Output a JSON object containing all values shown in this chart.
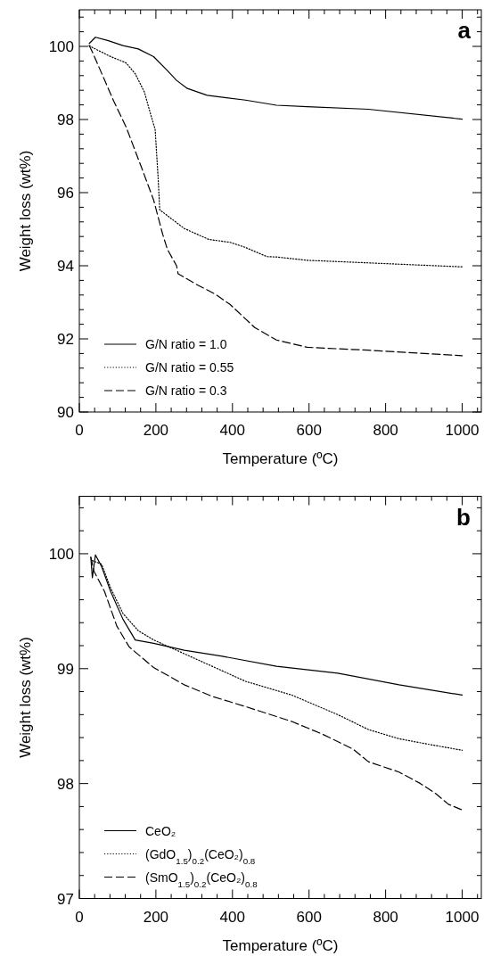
{
  "chart_data": [
    {
      "type": "line",
      "xlabel": "Temperature (ºC)",
      "ylabel": "Weight loss (wt%)",
      "annotations": [
        "a"
      ],
      "legend": "bottom left",
      "xlim": [
        0,
        1050
      ],
      "ylim": [
        90,
        101
      ],
      "xticks": [
        0,
        {
          "value": 40,
          "label": null
        },
        {
          "value": 80,
          "label": null
        },
        {
          "value": 120,
          "label": null
        },
        {
          "value": 160,
          "label": null
        },
        200,
        {
          "value": 240,
          "label": null
        },
        {
          "value": 280,
          "label": null
        },
        {
          "value": 320,
          "label": null
        },
        {
          "value": 360,
          "label": null
        },
        400,
        {
          "value": 440,
          "label": null
        },
        {
          "value": 480,
          "label": null
        },
        {
          "value": 520,
          "label": null
        },
        {
          "value": 560,
          "label": null
        },
        600,
        {
          "value": 640,
          "label": null
        },
        {
          "value": 680,
          "label": null
        },
        {
          "value": 720,
          "label": null
        },
        {
          "value": 760,
          "label": null
        },
        800,
        {
          "value": 840,
          "label": null
        },
        {
          "value": 880,
          "label": null
        },
        {
          "value": 920,
          "label": null
        },
        {
          "value": 960,
          "label": null
        },
        1000,
        {
          "value": 1040,
          "label": null
        }
      ],
      "yticks": [
        90,
        {
          "value": 90.4,
          "label": null
        },
        {
          "value": 90.8,
          "label": null
        },
        {
          "value": 91.2,
          "label": null
        },
        {
          "value": 91.6,
          "label": null
        },
        92,
        {
          "value": 92.4,
          "label": null
        },
        {
          "value": 92.8,
          "label": null
        },
        {
          "value": 93.2,
          "label": null
        },
        {
          "value": 93.6,
          "label": null
        },
        94,
        {
          "value": 94.4,
          "label": null
        },
        {
          "value": 94.8,
          "label": null
        },
        {
          "value": 95.2,
          "label": null
        },
        {
          "value": 95.6,
          "label": null
        },
        96,
        {
          "value": 96.4,
          "label": null
        },
        {
          "value": 96.8,
          "label": null
        },
        {
          "value": 97.2,
          "label": null
        },
        {
          "value": 97.6,
          "label": null
        },
        98,
        {
          "value": 98.4,
          "label": null
        },
        {
          "value": 98.8,
          "label": null
        },
        {
          "value": 99.2,
          "label": null
        },
        {
          "value": 99.6,
          "label": null
        },
        100,
        {
          "value": 100.4,
          "label": null
        },
        {
          "value": 100.8,
          "label": null
        }
      ],
      "series": [
        {
          "name": "G/N ratio = 1.0",
          "color": "#000000",
          "line_style": "solid",
          "x": [
            26,
            42,
            74,
            114,
            154,
            194,
            226,
            254,
            282,
            334,
            434,
            515,
            595,
            755,
            1000
          ],
          "values": [
            100.08,
            100.25,
            100.16,
            100.02,
            99.93,
            99.72,
            99.38,
            99.07,
            98.85,
            98.66,
            98.53,
            98.39,
            98.35,
            98.28,
            98.01
          ]
        },
        {
          "name": "G/N ratio = 0.55",
          "color": "#000000",
          "line_style": "dotted",
          "x": [
            26,
            34,
            82,
            122,
            146,
            170,
            186,
            198,
            206,
            210,
            274,
            338,
            394,
            434,
            490,
            515,
            595,
            1000
          ],
          "values": [
            100.02,
            99.97,
            99.72,
            99.55,
            99.25,
            98.75,
            98.15,
            97.73,
            96.37,
            95.53,
            95.02,
            94.72,
            94.64,
            94.5,
            94.25,
            94.24,
            94.15,
            93.97
          ]
        },
        {
          "name": "G/N ratio = 0.3",
          "color": "#000000",
          "line_style": "dashed",
          "x": [
            26,
            34,
            90,
            122,
            162,
            194,
            218,
            230,
            254,
            258,
            306,
            354,
            394,
            458,
            515,
            595,
            755,
            1000
          ],
          "values": [
            100.02,
            99.85,
            98.5,
            97.8,
            96.7,
            95.8,
            94.85,
            94.45,
            94.0,
            93.78,
            93.49,
            93.23,
            92.94,
            92.31,
            91.97,
            91.77,
            91.69,
            91.54
          ]
        }
      ]
    },
    {
      "type": "line",
      "xlabel": "Temperature (ºC)",
      "ylabel": "Weight loss (wt%)",
      "annotations": [
        "b"
      ],
      "legend": "bottom left",
      "xlim": [
        0,
        1050
      ],
      "ylim": [
        97,
        100.5
      ],
      "xticks": [
        0,
        {
          "value": 40,
          "label": null
        },
        {
          "value": 80,
          "label": null
        },
        {
          "value": 120,
          "label": null
        },
        {
          "value": 160,
          "label": null
        },
        200,
        {
          "value": 240,
          "label": null
        },
        {
          "value": 280,
          "label": null
        },
        {
          "value": 320,
          "label": null
        },
        {
          "value": 360,
          "label": null
        },
        400,
        {
          "value": 440,
          "label": null
        },
        {
          "value": 480,
          "label": null
        },
        {
          "value": 520,
          "label": null
        },
        {
          "value": 560,
          "label": null
        },
        600,
        {
          "value": 640,
          "label": null
        },
        {
          "value": 680,
          "label": null
        },
        {
          "value": 720,
          "label": null
        },
        {
          "value": 760,
          "label": null
        },
        800,
        {
          "value": 840,
          "label": null
        },
        {
          "value": 880,
          "label": null
        },
        {
          "value": 920,
          "label": null
        },
        {
          "value": 960,
          "label": null
        },
        1000,
        {
          "value": 1040,
          "label": null
        }
      ],
      "yticks": [
        97,
        {
          "value": 97.2,
          "label": null
        },
        {
          "value": 97.4,
          "label": null
        },
        {
          "value": 97.6,
          "label": null
        },
        {
          "value": 97.8,
          "label": null
        },
        98,
        {
          "value": 98.2,
          "label": null
        },
        {
          "value": 98.4,
          "label": null
        },
        {
          "value": 98.6,
          "label": null
        },
        {
          "value": 98.8,
          "label": null
        },
        99,
        {
          "value": 99.2,
          "label": null
        },
        {
          "value": 99.4,
          "label": null
        },
        {
          "value": 99.6,
          "label": null
        },
        {
          "value": 99.8,
          "label": null
        },
        100,
        {
          "value": 100.2,
          "label": null
        },
        {
          "value": 100.4,
          "label": null
        }
      ],
      "series": [
        {
          "name": "CeO₂",
          "color": "#000000",
          "line_style": "solid",
          "x": [
            30,
            34,
            42,
            58,
            82,
            114,
            146,
            194,
            274,
            370,
            515,
            675,
            835,
            1000
          ],
          "values": [
            99.97,
            99.79,
            99.99,
            99.89,
            99.67,
            99.43,
            99.25,
            99.22,
            99.16,
            99.11,
            99.02,
            98.96,
            98.86,
            98.77
          ]
        },
        {
          "name": "(GdO$_{1.5}$)$_{0.2}$(CeO₂)$_{0.8}$",
          "color": "#000000",
          "line_style": "dotted",
          "x": [
            34,
            58,
            82,
            114,
            154,
            194,
            274,
            354,
            434,
            555,
            675,
            755,
            835,
            915,
            1000
          ],
          "values": [
            99.94,
            99.91,
            99.7,
            99.48,
            99.33,
            99.25,
            99.13,
            99.01,
            98.89,
            98.77,
            98.6,
            98.47,
            98.39,
            98.34,
            98.29
          ]
        },
        {
          "name": "(SmO$_{1.5}$)$_{0.2}$(CeO₂)$_{0.8}$",
          "color": "#000000",
          "line_style": "dashed",
          "x": [
            30,
            38,
            66,
            98,
            130,
            194,
            274,
            346,
            434,
            555,
            635,
            715,
            755,
            835,
            891,
            932,
            964,
            1000
          ],
          "values": [
            99.97,
            99.85,
            99.67,
            99.37,
            99.19,
            99.01,
            98.86,
            98.76,
            98.67,
            98.54,
            98.43,
            98.3,
            98.19,
            98.1,
            98.0,
            97.91,
            97.82,
            97.77
          ]
        }
      ]
    }
  ]
}
